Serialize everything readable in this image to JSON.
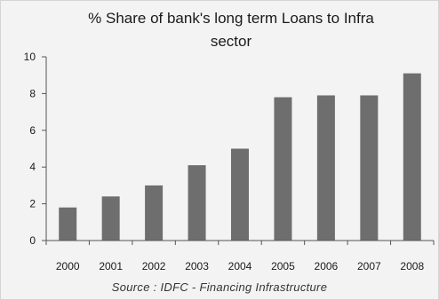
{
  "chart_data": {
    "type": "bar",
    "title_line1": "% Share of bank's long term Loans to Infra",
    "title_line2": "sector",
    "categories": [
      "2000",
      "2001",
      "2002",
      "2003",
      "2004",
      "2005",
      "2006",
      "2007",
      "2008"
    ],
    "values": [
      1.8,
      2.4,
      3.0,
      4.1,
      5.0,
      7.8,
      7.9,
      7.9,
      9.1
    ],
    "ylim": [
      0,
      10
    ],
    "yticks": [
      0,
      2,
      4,
      6,
      8,
      10
    ],
    "grid": false,
    "legend": "none",
    "bar_color": "#6e6e6e",
    "source": "Source : IDFC - Financing Infrastructure"
  }
}
